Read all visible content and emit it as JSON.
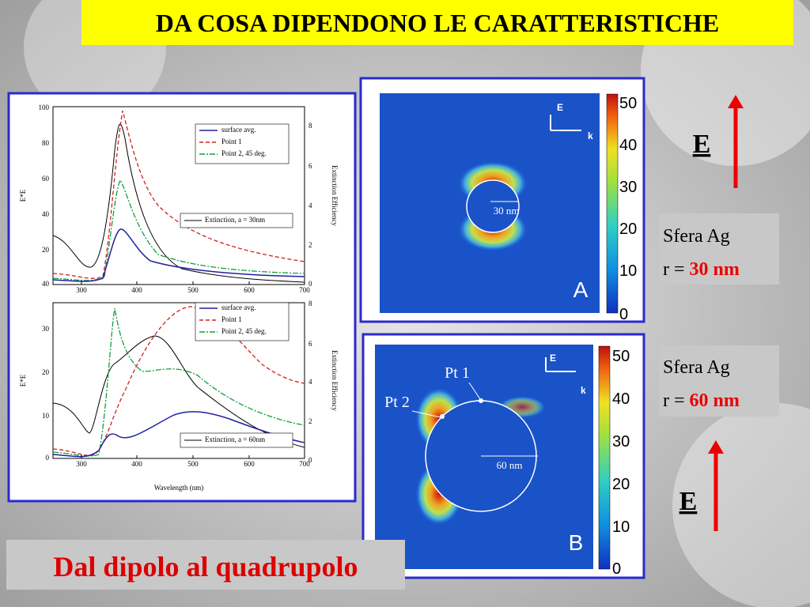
{
  "title": "DA COSA DIPENDONO LE CARATTERISTICHE",
  "figure": {
    "top": {
      "y_label": "E*E",
      "y2_label": "Extinction Efficiency",
      "yticks": [
        "100",
        "80",
        "60",
        "40",
        "20",
        "40"
      ],
      "y2ticks": [
        "8",
        "6",
        "4",
        "2",
        "0"
      ],
      "xticks": [
        "300",
        "400",
        "500",
        "600",
        "700"
      ],
      "legend": [
        "surface avg.",
        "Point 1",
        "Point 2, 45 deg."
      ],
      "extinction": "Extinction, a = 30nm"
    },
    "bottom": {
      "y_label": "E*E",
      "y2_label": "Extinction Efficiency",
      "yticks": [
        "30",
        "20",
        "10",
        "0"
      ],
      "y2ticks": [
        "8",
        "6",
        "4",
        "2",
        "0"
      ],
      "xticks": [
        "300",
        "400",
        "500",
        "600",
        "700"
      ],
      "legend": [
        "surface avg.",
        "Point 1",
        "Point 2, 45 deg."
      ],
      "extinction": "Extinction, a = 60nm",
      "x_label": "Wavelength (nm)"
    }
  },
  "map_a": {
    "axis_e": "E",
    "axis_k": "k",
    "scale": "30 nm",
    "panel": "A",
    "colorbar": [
      "50",
      "40",
      "30",
      "20",
      "10",
      "0"
    ]
  },
  "map_b": {
    "axis_e": "E",
    "axis_k": "k",
    "pt1": "Pt 1",
    "pt2": "Pt 2",
    "scale": "60 nm",
    "panel": "B",
    "colorbar": [
      "50",
      "40",
      "30",
      "20",
      "10",
      "0"
    ]
  },
  "field_top": "E",
  "field_bottom": "E",
  "sphere_a": {
    "line1": "Sfera Ag",
    "prefix": "r =",
    "radius": "30 nm"
  },
  "sphere_b": {
    "line1": "Sfera Ag",
    "prefix": "r =",
    "radius": "60 nm"
  },
  "caption": "Dal dipolo al quadrupolo"
}
